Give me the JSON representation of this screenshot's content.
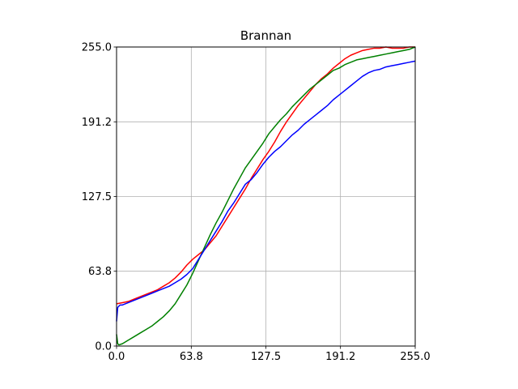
{
  "chart_data": {
    "type": "line",
    "title": "Brannan",
    "xlabel": "",
    "ylabel": "",
    "xlim": [
      0,
      255
    ],
    "ylim": [
      0,
      255
    ],
    "grid": true,
    "legend": "none",
    "xticks": [
      "0.0",
      "63.8",
      "127.5",
      "191.2",
      "255.0"
    ],
    "yticks": [
      "0.0",
      "63.8",
      "127.5",
      "191.2",
      "255.0"
    ],
    "series": [
      {
        "color": "#ff0000",
        "x": [
          0,
          5,
          10,
          15,
          20,
          25,
          30,
          35,
          40,
          45,
          50,
          55,
          60,
          65,
          70,
          75,
          80,
          85,
          90,
          95,
          100,
          105,
          110,
          115,
          120,
          125,
          130,
          135,
          140,
          145,
          150,
          155,
          160,
          165,
          170,
          175,
          180,
          185,
          190,
          195,
          200,
          205,
          210,
          215,
          220,
          225,
          230,
          235,
          240,
          245,
          250,
          255
        ],
        "y": [
          36,
          37,
          38,
          40,
          42,
          44,
          46,
          48,
          51,
          54,
          58,
          63,
          69,
          74,
          78,
          82,
          88,
          94,
          102,
          110,
          118,
          126,
          134,
          143,
          151,
          159,
          166,
          174,
          183,
          191,
          198,
          205,
          211,
          217,
          223,
          228,
          232,
          237,
          241,
          245,
          248,
          250,
          252,
          253,
          254,
          254,
          255,
          254,
          254,
          254,
          255,
          255
        ]
      },
      {
        "color": "#008000",
        "x": [
          0,
          1,
          2,
          5,
          10,
          15,
          20,
          25,
          30,
          35,
          40,
          45,
          50,
          55,
          60,
          65,
          70,
          75,
          80,
          85,
          90,
          95,
          100,
          105,
          110,
          115,
          120,
          125,
          130,
          135,
          140,
          145,
          150,
          155,
          160,
          165,
          170,
          175,
          180,
          185,
          190,
          195,
          200,
          205,
          210,
          215,
          220,
          225,
          230,
          235,
          240,
          245,
          250,
          255
        ],
        "y": [
          10,
          2,
          1,
          2,
          5,
          8,
          11,
          14,
          17,
          21,
          25,
          30,
          36,
          44,
          52,
          62,
          73,
          84,
          95,
          105,
          114,
          124,
          134,
          143,
          152,
          159,
          166,
          173,
          181,
          187,
          193,
          198,
          204,
          209,
          214,
          219,
          223,
          227,
          231,
          235,
          237,
          240,
          242,
          244,
          245,
          246,
          247,
          248,
          249,
          250,
          251,
          252,
          253,
          255
        ]
      },
      {
        "color": "#0000ff",
        "x": [
          0,
          1,
          3,
          5,
          10,
          15,
          20,
          25,
          30,
          35,
          40,
          45,
          50,
          55,
          60,
          65,
          70,
          75,
          80,
          85,
          90,
          95,
          100,
          105,
          110,
          115,
          120,
          125,
          130,
          135,
          140,
          145,
          150,
          155,
          160,
          165,
          170,
          175,
          180,
          185,
          190,
          195,
          200,
          205,
          210,
          215,
          220,
          225,
          230,
          235,
          240,
          245,
          250,
          255
        ],
        "y": [
          21,
          33,
          35,
          35,
          37,
          39,
          41,
          43,
          45,
          47,
          49,
          51,
          54,
          57,
          61,
          66,
          74,
          82,
          90,
          98,
          106,
          115,
          122,
          130,
          138,
          142,
          148,
          155,
          161,
          166,
          170,
          175,
          180,
          184,
          189,
          193,
          197,
          201,
          205,
          210,
          214,
          218,
          222,
          226,
          230,
          233,
          235,
          236,
          238,
          239,
          240,
          241,
          242,
          243
        ]
      }
    ]
  }
}
